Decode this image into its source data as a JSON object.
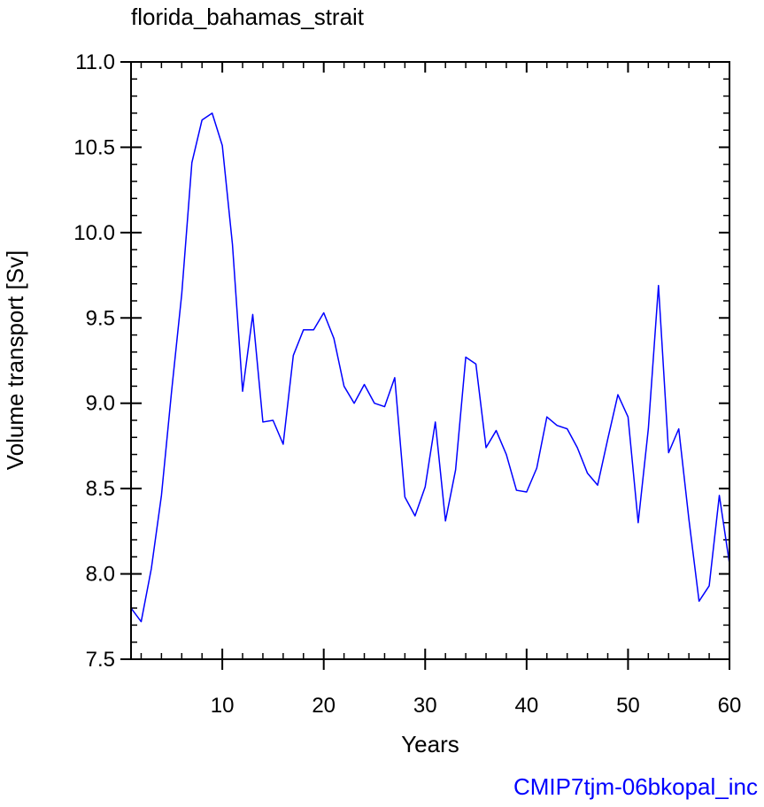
{
  "chart_data": {
    "type": "line",
    "title": "florida_bahamas_strait",
    "xlabel": "Years",
    "ylabel": "Volume transport [Sv]",
    "xlim": [
      1,
      60
    ],
    "ylim": [
      7.5,
      11.0
    ],
    "x_ticks": [
      "10",
      "20",
      "30",
      "40",
      "50",
      "60"
    ],
    "y_ticks": [
      "7.5",
      "8.0",
      "8.5",
      "9.0",
      "9.5",
      "10.0",
      "10.5",
      "11.0"
    ],
    "grid": false,
    "series": [
      {
        "color": "#0000ff",
        "x": [
          1,
          2,
          3,
          4,
          5,
          6,
          7,
          8,
          9,
          10,
          11,
          12,
          13,
          14,
          15,
          16,
          17,
          18,
          19,
          20,
          21,
          22,
          23,
          24,
          25,
          26,
          27,
          28,
          29,
          30,
          31,
          32,
          33,
          34,
          35,
          36,
          37,
          38,
          39,
          40,
          41,
          42,
          43,
          44,
          45,
          46,
          47,
          48,
          49,
          50,
          51,
          52,
          53,
          54,
          55,
          56,
          57,
          58,
          59,
          60
        ],
        "values": [
          7.8,
          7.72,
          8.03,
          8.46,
          9.07,
          9.64,
          10.41,
          10.66,
          10.7,
          10.51,
          9.93,
          9.07,
          9.52,
          8.89,
          8.9,
          8.76,
          9.28,
          9.43,
          9.43,
          9.53,
          9.38,
          9.1,
          9.0,
          9.11,
          9.0,
          8.98,
          9.15,
          8.45,
          8.34,
          8.51,
          8.89,
          8.31,
          8.61,
          9.27,
          9.23,
          8.74,
          8.84,
          8.7,
          8.49,
          8.48,
          8.62,
          8.92,
          8.87,
          8.85,
          8.74,
          8.59,
          8.52,
          8.79,
          9.05,
          8.92,
          8.3,
          8.85,
          9.69,
          8.71,
          8.85,
          8.32,
          7.84,
          7.93,
          8.46,
          8.06
        ]
      }
    ]
  },
  "footer": {
    "label": "CMIP7tjm-06bkopal_inc",
    "color": "#0000ff"
  }
}
